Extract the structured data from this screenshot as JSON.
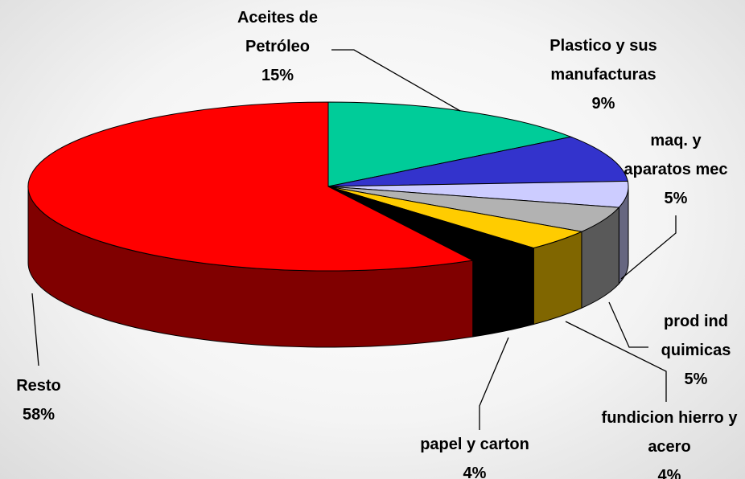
{
  "chart_data": {
    "type": "pie3d",
    "categories": [
      "Aceites de Petróleo",
      "Plastico y sus manufacturas",
      "maq. y aparatos mec",
      "prod ind quimicas",
      "fundicion hierro y acero",
      "papel y carton",
      "Resto"
    ],
    "values": [
      15,
      9,
      5,
      5,
      4,
      4,
      58
    ],
    "value_labels": [
      "15%",
      "9%",
      "5%",
      "5%",
      "4%",
      "4%",
      "58%"
    ],
    "colors": [
      "#00cc99",
      "#3333cc",
      "#ccccff",
      "#b2b2b2",
      "#ffcc00",
      "#000000",
      "#ff0000"
    ]
  }
}
